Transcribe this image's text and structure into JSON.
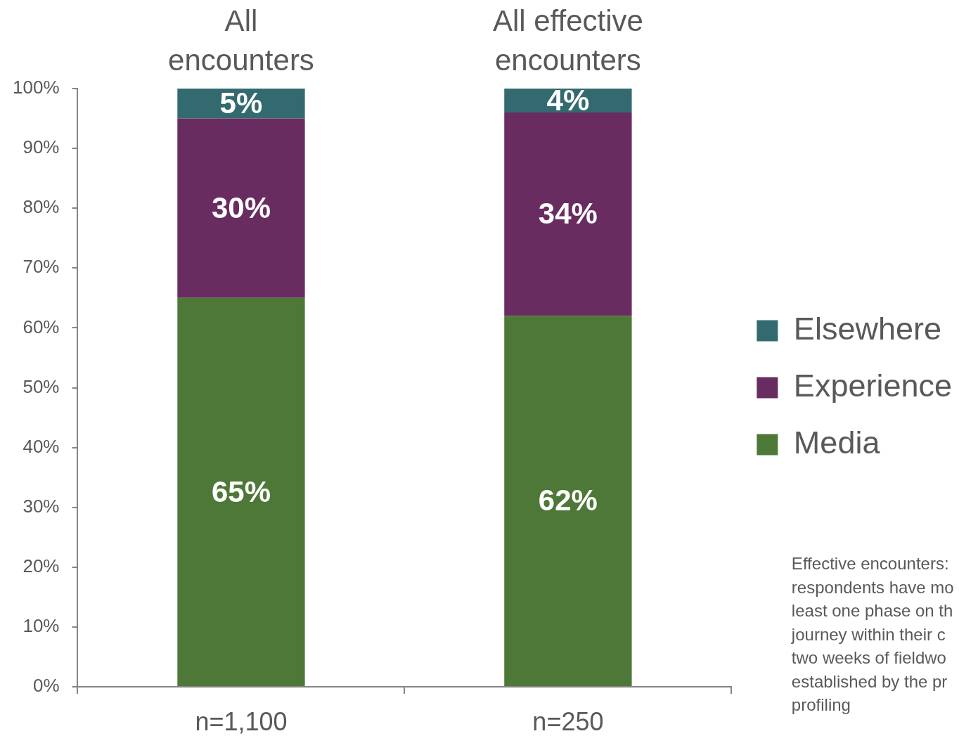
{
  "chart_data": {
    "type": "bar",
    "stacked": true,
    "categories": [
      "n=1,100",
      "n=250"
    ],
    "series": [
      {
        "name": "Media",
        "color": "#4e7838",
        "values": [
          65,
          62
        ],
        "value_labels": [
          "65%",
          "62%"
        ]
      },
      {
        "name": "Experience",
        "color": "#692c61",
        "values": [
          30,
          34
        ],
        "value_labels": [
          "30%",
          "34%"
        ]
      },
      {
        "name": "Elsewhere",
        "color": "#336a6f",
        "values": [
          5,
          4
        ],
        "value_labels": [
          "5%",
          "4%"
        ]
      }
    ],
    "ylim": [
      0,
      100
    ],
    "yticks": [
      {
        "value": 0,
        "label": "0%"
      },
      {
        "value": 10,
        "label": "10%"
      },
      {
        "value": 20,
        "label": "20%"
      },
      {
        "value": 30,
        "label": "30%"
      },
      {
        "value": 40,
        "label": "40%"
      },
      {
        "value": 50,
        "label": "50%"
      },
      {
        "value": 60,
        "label": "60%"
      },
      {
        "value": 70,
        "label": "70%"
      },
      {
        "value": 80,
        "label": "80%"
      },
      {
        "value": 90,
        "label": "90%"
      },
      {
        "value": 100,
        "label": "100%"
      }
    ],
    "legend": "right",
    "annotations": [
      "All encounters",
      "All effective encounters",
      "Effective encounters:\nrespondents have mo\nleast one phase on th\njourney within their c\ntwo weeks of fieldwo\nestablished by the pr\nprofiling"
    ]
  }
}
